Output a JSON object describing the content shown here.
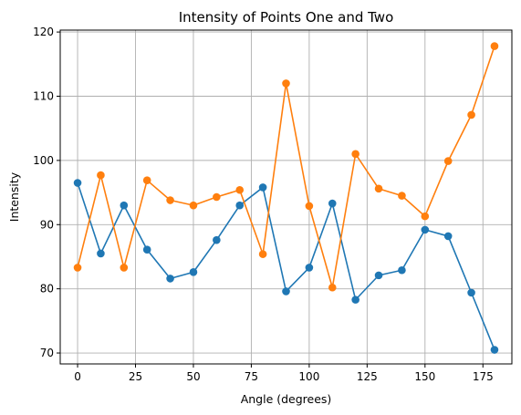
{
  "chart_data": {
    "type": "line",
    "title": "Intensity of Points One and Two",
    "xlabel": "Angle (degrees)",
    "ylabel": "Intensity",
    "xlim": [
      -7.5,
      187.5
    ],
    "ylim": [
      68.3,
      120.3
    ],
    "xticks": [
      0,
      25,
      50,
      75,
      100,
      125,
      150,
      175
    ],
    "yticks": [
      70,
      80,
      90,
      100,
      110,
      120
    ],
    "grid": true,
    "x": [
      0,
      10,
      20,
      30,
      40,
      50,
      60,
      70,
      80,
      90,
      100,
      110,
      120,
      130,
      140,
      150,
      160,
      170,
      180
    ],
    "series": [
      {
        "color": "#1f77b4",
        "marker": "circle",
        "values": [
          96.5,
          85.5,
          93.0,
          86.1,
          81.6,
          82.6,
          87.6,
          93.0,
          95.8,
          79.6,
          83.3,
          93.3,
          78.3,
          82.1,
          82.9,
          89.2,
          88.2,
          79.4,
          70.5
        ]
      },
      {
        "color": "#ff7f0e",
        "marker": "circle",
        "values": [
          83.3,
          97.7,
          83.3,
          96.9,
          93.8,
          93.0,
          94.3,
          95.4,
          85.4,
          112.0,
          92.9,
          80.2,
          101.0,
          95.6,
          94.5,
          91.3,
          99.9,
          107.1,
          117.8
        ]
      }
    ]
  }
}
